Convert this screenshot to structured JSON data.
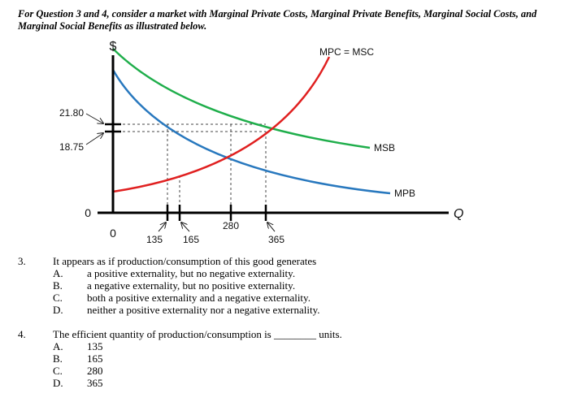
{
  "intro": "For Question 3 and 4, consider a market with Marginal Private Costs, Marginal Private Benefits, Marginal Social Costs, and Marginal Social Benefits as illustrated below.",
  "chart_data": {
    "type": "line",
    "y_axis_symbol": "$",
    "x_axis_symbol": "Q",
    "origin_label": "0",
    "y_zero_label": "0",
    "y_ticks": [
      "18.75",
      "21.80"
    ],
    "x_ticks": [
      "135",
      "165",
      "280",
      "365"
    ],
    "series": [
      {
        "name": "MPC = MSC",
        "color": "#e02020"
      },
      {
        "name": "MSB",
        "color": "#1fae4b"
      },
      {
        "name": "MPB",
        "color": "#2878be"
      }
    ]
  },
  "questions": [
    {
      "number": "3.",
      "text": "It appears as if production/consumption of this good generates",
      "options": [
        {
          "letter": "A.",
          "text": "a positive externality, but no negative externality."
        },
        {
          "letter": "B.",
          "text": "a negative externality, but no positive externality."
        },
        {
          "letter": "C.",
          "text": "both a positive externality and a negative externality."
        },
        {
          "letter": "D.",
          "text": "neither a positive externality nor a negative externality."
        }
      ]
    },
    {
      "number": "4.",
      "text": "The efficient quantity of production/consumption is ________ units.",
      "options": [
        {
          "letter": "A.",
          "text": "135"
        },
        {
          "letter": "B.",
          "text": "165"
        },
        {
          "letter": "C.",
          "text": "280"
        },
        {
          "letter": "D.",
          "text": "365"
        }
      ]
    }
  ]
}
